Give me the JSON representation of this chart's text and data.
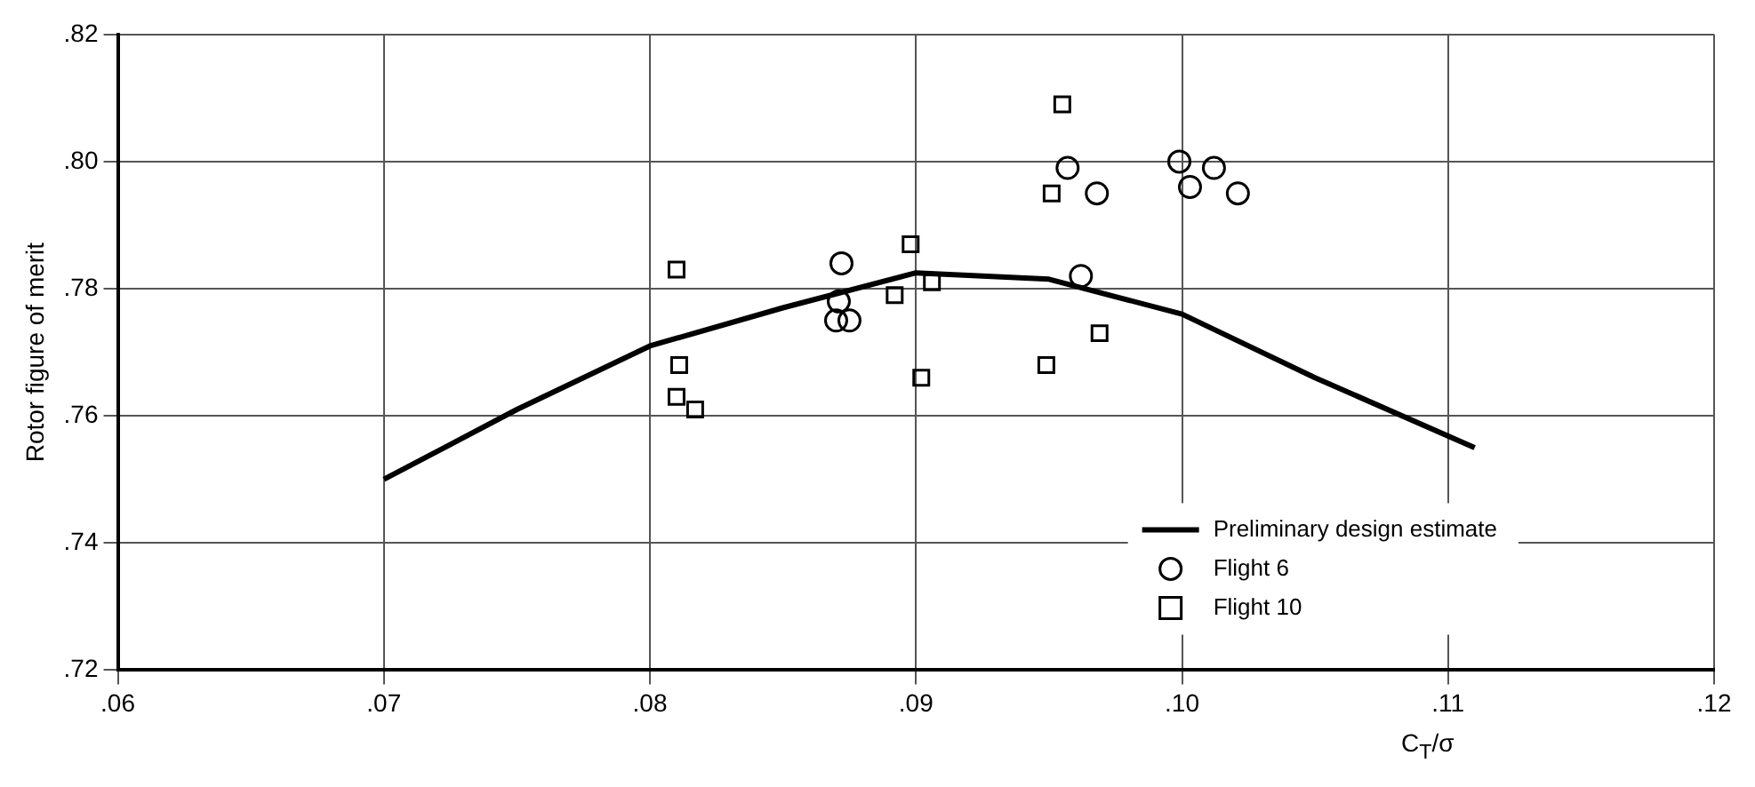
{
  "chart_data": {
    "type": "scatter",
    "xlabel": "C$_{T}$/σ",
    "ylabel": "Rotor figure of merit",
    "xlim": [
      0.06,
      0.12
    ],
    "ylim": [
      0.72,
      0.82
    ],
    "xticks": [
      {
        "value": 0.06,
        "label": ".06"
      },
      {
        "value": 0.07,
        "label": ".07"
      },
      {
        "value": 0.08,
        "label": ".08"
      },
      {
        "value": 0.09,
        "label": ".09"
      },
      {
        "value": 0.1,
        "label": ".10"
      },
      {
        "value": 0.11,
        "label": ".11"
      },
      {
        "value": 0.12,
        "label": ".12"
      }
    ],
    "yticks": [
      {
        "value": 0.72,
        "label": ".72"
      },
      {
        "value": 0.74,
        "label": ".74"
      },
      {
        "value": 0.76,
        "label": ".76"
      },
      {
        "value": 0.78,
        "label": ".78"
      },
      {
        "value": 0.8,
        "label": ".80"
      },
      {
        "value": 0.82,
        "label": ".82"
      }
    ],
    "grid": true,
    "legend": "bottom right",
    "series": [
      {
        "name": "Preliminary design estimate",
        "type": "line",
        "marker": "none",
        "color": "#000000",
        "x": [
          0.07,
          0.075,
          0.08,
          0.085,
          0.09,
          0.095,
          0.1,
          0.105,
          0.111
        ],
        "values": [
          0.75,
          0.761,
          0.771,
          0.777,
          0.7825,
          0.7815,
          0.776,
          0.766,
          0.755
        ]
      },
      {
        "name": "Flight 6",
        "type": "scatter",
        "marker": "circle",
        "color": "#000000",
        "x": [
          0.0872,
          0.0871,
          0.087,
          0.0875,
          0.0957,
          0.0968,
          0.0962,
          0.0999,
          0.1012,
          0.1003,
          0.1021
        ],
        "values": [
          0.784,
          0.778,
          0.775,
          0.775,
          0.799,
          0.795,
          0.782,
          0.8,
          0.799,
          0.796,
          0.795
        ]
      },
      {
        "name": "Flight 10",
        "type": "scatter",
        "marker": "square",
        "color": "#000000",
        "x": [
          0.081,
          0.0811,
          0.081,
          0.0817,
          0.0898,
          0.0892,
          0.0906,
          0.0902,
          0.0951,
          0.0955,
          0.0969,
          0.0949
        ],
        "values": [
          0.783,
          0.768,
          0.763,
          0.761,
          0.787,
          0.779,
          0.781,
          0.766,
          0.795,
          0.809,
          0.773,
          0.768
        ]
      }
    ]
  }
}
